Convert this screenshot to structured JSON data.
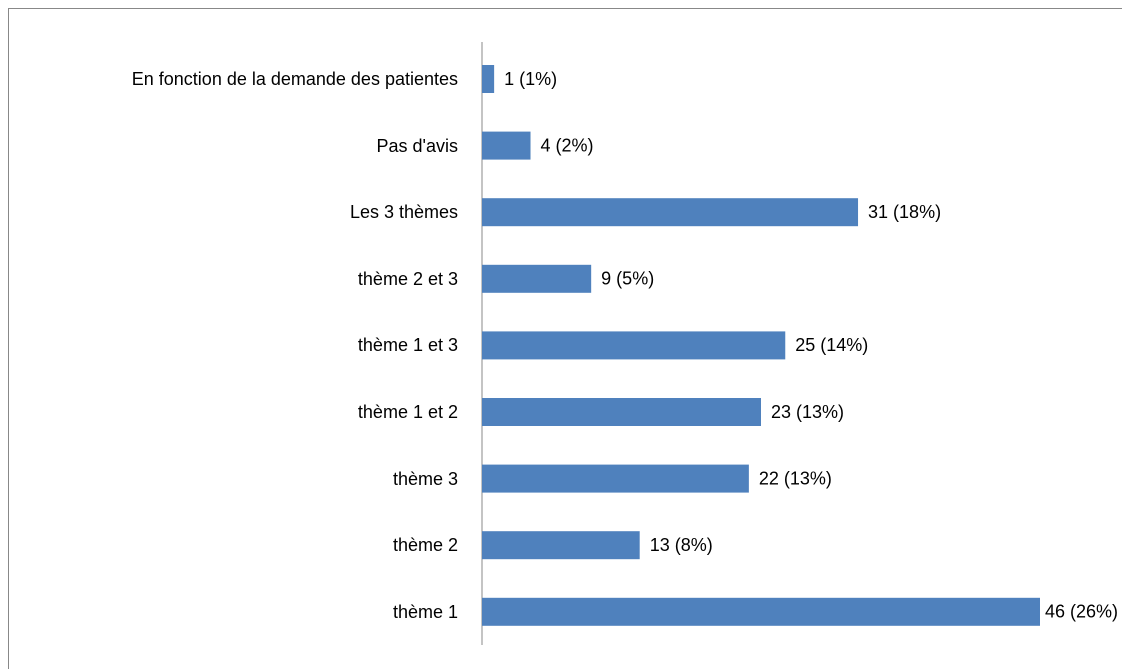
{
  "chart_data": {
    "type": "bar",
    "orientation": "horizontal",
    "categories": [
      "En fonction de la demande des patientes",
      "Pas d'avis",
      "Les 3 thèmes",
      "thème 2 et 3",
      "thème 1 et 3",
      "thème 1 et 2",
      "thème 3",
      "thème 2",
      "thème 1"
    ],
    "values": [
      1,
      4,
      31,
      9,
      25,
      23,
      22,
      13,
      46
    ],
    "value_labels": [
      "1 (1%)",
      "4 (2%)",
      "31 (18%)",
      "9 (5%)",
      "25 (14%)",
      "23 (13%)",
      "22 (13%)",
      "13 (8%)",
      "46 (26%)"
    ],
    "color": "#4f81bd"
  }
}
